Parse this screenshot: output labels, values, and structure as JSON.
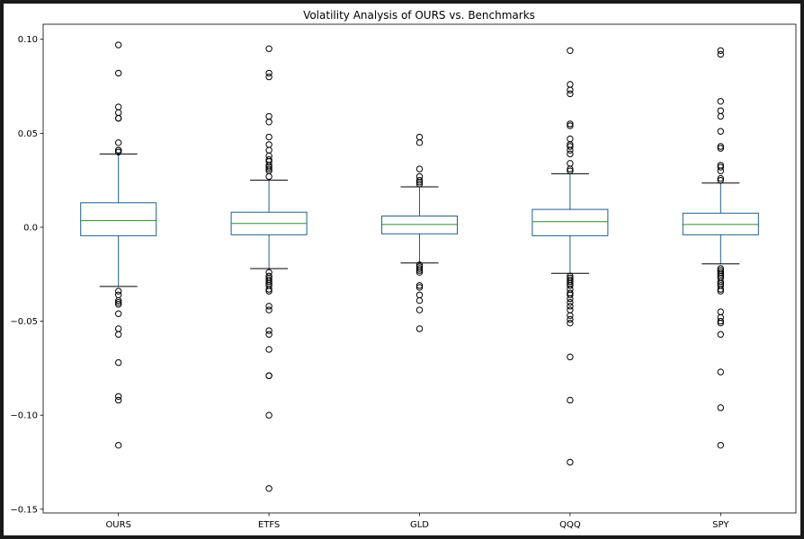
{
  "chart_data": {
    "type": "box",
    "title": "Volatility Analysis of OURS vs. Benchmarks",
    "xlabel": "",
    "ylabel": "",
    "ylim": [
      -0.152,
      0.108
    ],
    "yticks": [
      0.1,
      0.05,
      0.0,
      -0.05,
      -0.1,
      -0.15
    ],
    "ytick_labels": [
      "0.10",
      "0.05",
      "0.0",
      "−0.05",
      "−0.10",
      "−0.15"
    ],
    "grid": false,
    "legend": "none",
    "colors": {
      "box": "#1f5f8b",
      "median": "#2e8b2e",
      "whisker_cap": "#000000",
      "flier": "#000000",
      "frame": "#1a1a1a"
    },
    "categories": [
      "OURS",
      "ETFS",
      "GLD",
      "QQQ",
      "SPY"
    ],
    "boxes": [
      {
        "label": "OURS",
        "whislo": -0.0315,
        "q1": -0.0045,
        "median": 0.0035,
        "q3": 0.013,
        "whishi": 0.039,
        "fliers": [
          0.097,
          0.082,
          0.064,
          0.061,
          0.058,
          0.058,
          0.045,
          0.041,
          0.041,
          0.04,
          -0.034,
          -0.036,
          -0.039,
          -0.04,
          -0.041,
          -0.046,
          -0.054,
          -0.057,
          -0.072,
          -0.09,
          -0.092,
          -0.116
        ]
      },
      {
        "label": "ETFS",
        "whislo": -0.022,
        "q1": -0.004,
        "median": 0.002,
        "q3": 0.008,
        "whishi": 0.025,
        "fliers": [
          0.095,
          0.082,
          0.08,
          0.059,
          0.056,
          0.048,
          0.044,
          0.041,
          0.038,
          0.036,
          0.035,
          0.033,
          0.032,
          0.031,
          0.03,
          0.027,
          -0.024,
          -0.026,
          -0.027,
          -0.028,
          -0.029,
          -0.03,
          -0.031,
          -0.033,
          -0.034,
          -0.042,
          -0.044,
          -0.055,
          -0.057,
          -0.065,
          -0.079,
          -0.079,
          -0.1,
          -0.139
        ]
      },
      {
        "label": "GLD",
        "whislo": -0.019,
        "q1": -0.0035,
        "median": 0.0015,
        "q3": 0.006,
        "whishi": 0.0215,
        "fliers": [
          0.048,
          0.045,
          0.031,
          0.027,
          0.025,
          0.024,
          0.023,
          -0.02,
          -0.021,
          -0.022,
          -0.023,
          -0.024,
          -0.031,
          -0.032,
          -0.036,
          -0.039,
          -0.044,
          -0.054
        ]
      },
      {
        "label": "QQQ",
        "whislo": -0.0245,
        "q1": -0.0045,
        "median": 0.003,
        "q3": 0.0095,
        "whishi": 0.0285,
        "fliers": [
          0.094,
          0.076,
          0.073,
          0.071,
          0.055,
          0.054,
          0.047,
          0.044,
          0.043,
          0.041,
          0.039,
          0.034,
          0.031,
          0.03,
          -0.026,
          -0.027,
          -0.028,
          -0.029,
          -0.03,
          -0.031,
          -0.033,
          -0.035,
          -0.036,
          -0.038,
          -0.04,
          -0.042,
          -0.044,
          -0.047,
          -0.049,
          -0.051,
          -0.069,
          -0.092,
          -0.125
        ]
      },
      {
        "label": "SPY",
        "whislo": -0.0195,
        "q1": -0.004,
        "median": 0.0015,
        "q3": 0.0075,
        "whishi": 0.0235,
        "fliers": [
          0.094,
          0.092,
          0.067,
          0.062,
          0.059,
          0.051,
          0.043,
          0.042,
          0.033,
          0.032,
          0.03,
          0.026,
          0.025,
          -0.022,
          -0.023,
          -0.024,
          -0.025,
          -0.026,
          -0.027,
          -0.029,
          -0.03,
          -0.031,
          -0.033,
          -0.034,
          -0.045,
          -0.048,
          -0.05,
          -0.051,
          -0.057,
          -0.077,
          -0.096,
          -0.116
        ]
      }
    ]
  }
}
